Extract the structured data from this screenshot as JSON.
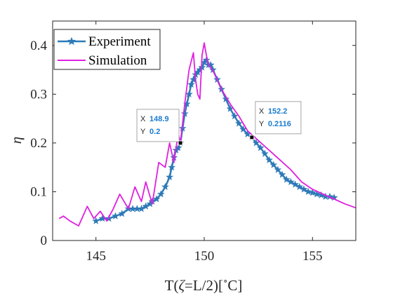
{
  "chart_data": {
    "type": "line",
    "xlabel_parts": {
      "prefix": "T(",
      "zeta": "ζ",
      "middle": "=L/2)[",
      "degree": "∘",
      "suffix": "C]"
    },
    "ylabel": "η",
    "xlim": [
      143,
      157
    ],
    "ylim": [
      0,
      0.45
    ],
    "xticks": [
      145,
      150,
      155
    ],
    "xtick_labels": [
      "145",
      "150",
      "155"
    ],
    "yticks": [
      0,
      0.1,
      0.2,
      0.3,
      0.4
    ],
    "ytick_labels": [
      "0",
      "0.1",
      "0.2",
      "0.3",
      "0.4"
    ],
    "grid": false,
    "legend_position": "top-left",
    "series": [
      {
        "name": "Experiment",
        "color": "#2e7ab8",
        "marker": "star",
        "x": [
          145.0,
          145.3,
          145.6,
          145.9,
          146.2,
          146.5,
          146.7,
          146.9,
          147.1,
          147.3,
          147.5,
          147.6,
          147.8,
          148.0,
          148.2,
          148.4,
          148.5,
          148.6,
          148.7,
          148.8,
          148.9,
          149.0,
          149.1,
          149.2,
          149.3,
          149.4,
          149.5,
          149.6,
          149.7,
          149.8,
          149.9,
          150.0,
          150.1,
          150.2,
          150.3,
          150.4,
          150.6,
          150.8,
          151.0,
          151.2,
          151.4,
          151.6,
          151.8,
          152.0,
          152.2,
          152.4,
          152.6,
          152.8,
          153.0,
          153.2,
          153.4,
          153.6,
          153.8,
          154.0,
          154.2,
          154.4,
          154.6,
          154.8,
          155.0,
          155.2,
          155.4,
          155.6,
          155.8,
          156.0
        ],
        "values": [
          0.04,
          0.045,
          0.045,
          0.05,
          0.055,
          0.065,
          0.065,
          0.065,
          0.065,
          0.07,
          0.075,
          0.08,
          0.085,
          0.095,
          0.11,
          0.13,
          0.15,
          0.17,
          0.185,
          0.19,
          0.2,
          0.23,
          0.26,
          0.28,
          0.3,
          0.32,
          0.33,
          0.34,
          0.345,
          0.35,
          0.355,
          0.365,
          0.37,
          0.36,
          0.36,
          0.35,
          0.33,
          0.31,
          0.29,
          0.27,
          0.255,
          0.24,
          0.228,
          0.218,
          0.2116,
          0.2,
          0.19,
          0.178,
          0.165,
          0.155,
          0.145,
          0.135,
          0.125,
          0.12,
          0.115,
          0.11,
          0.105,
          0.1,
          0.098,
          0.095,
          0.093,
          0.09,
          0.09,
          0.088
        ]
      },
      {
        "name": "Simulation",
        "color": "#e020e0",
        "x": [
          143.3,
          143.5,
          143.8,
          144.2,
          144.6,
          144.9,
          145.2,
          145.5,
          145.8,
          146.1,
          146.5,
          146.8,
          147.1,
          147.3,
          147.6,
          147.9,
          148.2,
          148.4,
          148.6,
          148.8,
          148.9,
          149.1,
          149.3,
          149.5,
          149.6,
          149.7,
          149.8,
          149.9,
          150.0,
          150.1,
          150.2,
          150.3,
          150.5,
          150.8,
          151.2,
          151.6,
          152.0,
          152.5,
          153.0,
          153.5,
          154.0,
          154.5,
          155.0,
          155.5,
          156.0,
          156.5,
          157.0
        ],
        "values": [
          0.045,
          0.05,
          0.04,
          0.03,
          0.07,
          0.045,
          0.06,
          0.04,
          0.065,
          0.095,
          0.065,
          0.11,
          0.08,
          0.12,
          0.075,
          0.16,
          0.15,
          0.2,
          0.16,
          0.22,
          0.2,
          0.28,
          0.35,
          0.385,
          0.33,
          0.3,
          0.29,
          0.38,
          0.405,
          0.38,
          0.36,
          0.355,
          0.34,
          0.31,
          0.28,
          0.255,
          0.225,
          0.205,
          0.185,
          0.165,
          0.145,
          0.12,
          0.105,
          0.095,
          0.085,
          0.075,
          0.067
        ]
      }
    ],
    "annotations": [
      {
        "x_label": "X",
        "x_value": "148.9",
        "y_label": "Y",
        "y_value": "0.2",
        "x": 148.9,
        "y": 0.2
      },
      {
        "x_label": "X",
        "x_value": "152.2",
        "y_label": "Y",
        "y_value": "0.2116",
        "x": 152.2,
        "y": 0.2116
      }
    ]
  }
}
